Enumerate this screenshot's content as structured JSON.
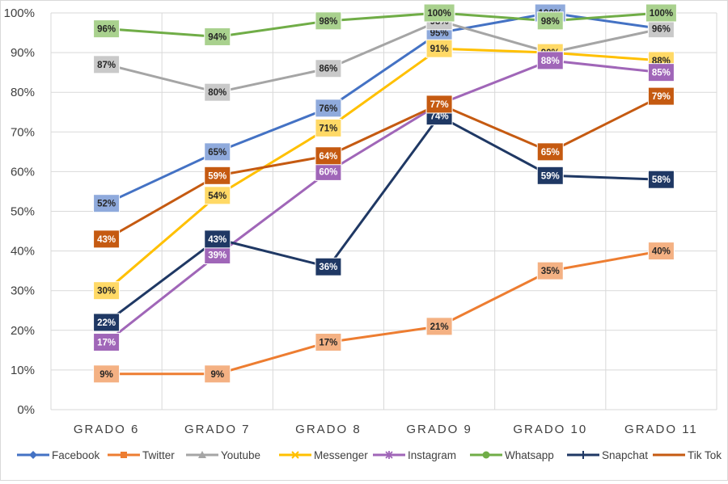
{
  "chart_data": {
    "type": "line",
    "title": "",
    "xlabel": "",
    "ylabel": "",
    "ylim": [
      0,
      100
    ],
    "y_ticks": [
      "0%",
      "10%",
      "20%",
      "30%",
      "40%",
      "50%",
      "60%",
      "70%",
      "80%",
      "90%",
      "100%"
    ],
    "categories": [
      "GRADO 6",
      "GRADO 7",
      "GRADO 8",
      "GRADO 9",
      "GRADO 10",
      "GRADO 11"
    ],
    "grid": true,
    "legend_position": "bottom",
    "series": [
      {
        "name": "Facebook",
        "color": "#4472c4",
        "label_bg": "#8faadc",
        "label_fg": "#262626",
        "marker": "diamond",
        "values": [
          52,
          65,
          76,
          95,
          100,
          96
        ],
        "labels": [
          "52%",
          "65%",
          "76%",
          "95%",
          "100%",
          "96%"
        ]
      },
      {
        "name": "Twitter",
        "color": "#ed7d31",
        "label_bg": "#f4b183",
        "label_fg": "#262626",
        "marker": "square",
        "values": [
          9,
          9,
          17,
          21,
          35,
          40
        ],
        "labels": [
          "9%",
          "9%",
          "17%",
          "21%",
          "35%",
          "40%"
        ]
      },
      {
        "name": "Youtube",
        "color": "#a5a5a5",
        "label_bg": "#c9c9c9",
        "label_fg": "#262626",
        "marker": "triangle",
        "values": [
          87,
          80,
          86,
          98,
          90,
          96
        ],
        "labels": [
          "87%",
          "80%",
          "86%",
          "98%",
          "90%",
          "96%"
        ]
      },
      {
        "name": "Messenger",
        "color": "#ffc000",
        "label_bg": "#ffd966",
        "label_fg": "#262626",
        "marker": "x",
        "values": [
          30,
          54,
          71,
          91,
          90,
          88
        ],
        "labels": [
          "30%",
          "54%",
          "71%",
          "91%",
          "90%",
          "88%"
        ]
      },
      {
        "name": "Instagram",
        "color": "#a066b8",
        "label_bg": "#a066b8",
        "label_fg": "#ffffff",
        "marker": "star",
        "values": [
          17,
          39,
          60,
          77,
          88,
          85
        ],
        "labels": [
          "17%",
          "39%",
          "60%",
          "",
          "88%",
          "85%"
        ]
      },
      {
        "name": "Whatsapp",
        "color": "#70ad47",
        "label_bg": "#a9d18e",
        "label_fg": "#262626",
        "marker": "circle",
        "values": [
          96,
          94,
          98,
          100,
          98,
          100
        ],
        "labels": [
          "96%",
          "94%",
          "98%",
          "100%",
          "98%",
          "100%"
        ]
      },
      {
        "name": "Snapchat",
        "color": "#1f3864",
        "label_bg": "#1f3864",
        "label_fg": "#ffffff",
        "marker": "plus",
        "values": [
          22,
          43,
          36,
          74,
          59,
          58
        ],
        "labels": [
          "22%",
          "43%",
          "36%",
          "74%",
          "59%",
          "58%"
        ]
      },
      {
        "name": "Tik Tok",
        "color": "#c55a11",
        "label_bg": "#c55a11",
        "label_fg": "#ffffff",
        "marker": "dash",
        "values": [
          43,
          59,
          64,
          77,
          65,
          79
        ],
        "labels": [
          "43%",
          "59%",
          "64%",
          "77%",
          "65%",
          "79%"
        ]
      }
    ]
  }
}
